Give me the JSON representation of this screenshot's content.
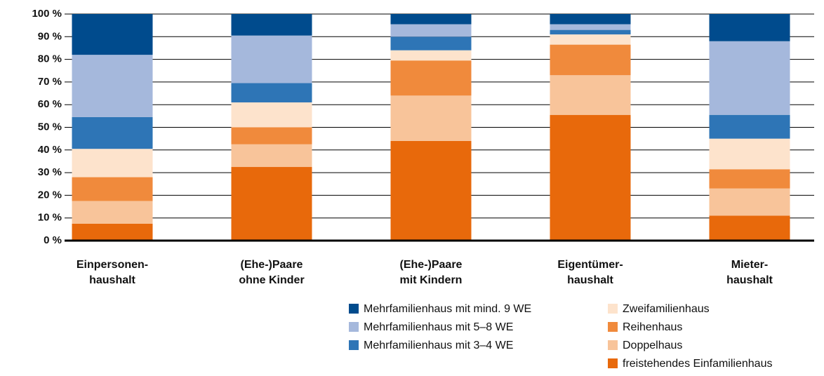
{
  "chart_data": {
    "type": "stacked_bar",
    "categories": [
      [
        "Einpersonen-",
        "haushalt"
      ],
      [
        "(Ehe-)Paare",
        "ohne Kinder"
      ],
      [
        "(Ehe-)Paare",
        "mit Kindern"
      ],
      [
        "Eigentümer-",
        "haushalt"
      ],
      [
        "Mieter-",
        "haushalt"
      ]
    ],
    "series": [
      {
        "name": "freistehendes Einfamilienhaus",
        "color": "#e8690b",
        "values": [
          7.5,
          32.5,
          44,
          55.5,
          11
        ]
      },
      {
        "name": "Doppelhaus",
        "color": "#f8c49a",
        "values": [
          10,
          10,
          20,
          17.5,
          12
        ]
      },
      {
        "name": "Reihenhaus",
        "color": "#f08a3c",
        "values": [
          10.5,
          7.5,
          15.5,
          13.5,
          8.5
        ]
      },
      {
        "name": "Zweifamilienhaus",
        "color": "#fde3cc",
        "values": [
          12.5,
          11,
          4.5,
          4.5,
          13.5
        ]
      },
      {
        "name": "Mehrfamilienhaus mit 3–4 WE",
        "color": "#2e75b6",
        "values": [
          14,
          8.5,
          6,
          2,
          10.5
        ]
      },
      {
        "name": "Mehrfamilienhaus mit 5–8 WE",
        "color": "#a5b8dc",
        "values": [
          27.5,
          21,
          5.5,
          2.5,
          32.5
        ]
      },
      {
        "name": "Mehrfamilienhaus mit mind. 9 WE",
        "color": "#004b8d",
        "values": [
          18,
          9.5,
          4.5,
          4.5,
          12
        ]
      }
    ],
    "ylim": [
      0,
      100
    ],
    "yticks": [
      {
        "value": 0,
        "label": "0 %"
      },
      {
        "value": 10,
        "label": "10 %"
      },
      {
        "value": 20,
        "label": "20 %"
      },
      {
        "value": 30,
        "label": "30 %"
      },
      {
        "value": 40,
        "label": "40 %"
      },
      {
        "value": 50,
        "label": "50 %"
      },
      {
        "value": 60,
        "label": "60 %"
      },
      {
        "value": 70,
        "label": "70 %"
      },
      {
        "value": 80,
        "label": "80 %"
      },
      {
        "value": 90,
        "label": "90 %"
      },
      {
        "value": 100,
        "label": "100 %"
      }
    ],
    "grid": true
  }
}
